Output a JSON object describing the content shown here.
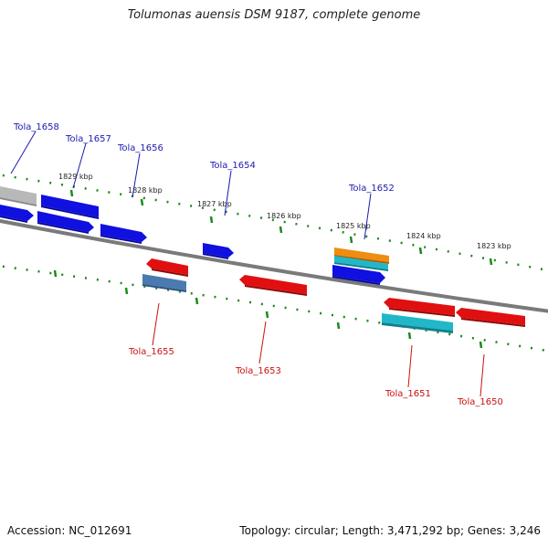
{
  "title": "Tolumonas auensis DSM 9187, complete genome",
  "footer": {
    "accession": "Accession: NC_012691",
    "topology": "Topology: circular; Length: 3,471,292 bp; Genes: 3,246"
  },
  "colors": {
    "forward_gene": "#1010e0",
    "reverse_gene": "#e01010",
    "teal_gene": "#20b8c8",
    "orange_gene": "#f08c10",
    "steel_gene": "#4a7ab0",
    "grey_gene": "#b8b8b8",
    "backbone": "#7a7a7a",
    "ticks": "#1a8a1a",
    "forward_label": "#1a1ab0",
    "reverse_label": "#cc1010"
  },
  "kbp_labels": [
    "1829 kbp",
    "1828 kbp",
    "1827 kbp",
    "1826 kbp",
    "1825 kbp",
    "1824 kbp",
    "1823 kbp"
  ],
  "forward_labels": [
    "Tola_1658",
    "Tola_1657",
    "Tola_1656",
    "Tola_1654",
    "Tola_1652"
  ],
  "reverse_labels": [
    "Tola_1655",
    "Tola_1653",
    "Tola_1651",
    "Tola_1650"
  ]
}
